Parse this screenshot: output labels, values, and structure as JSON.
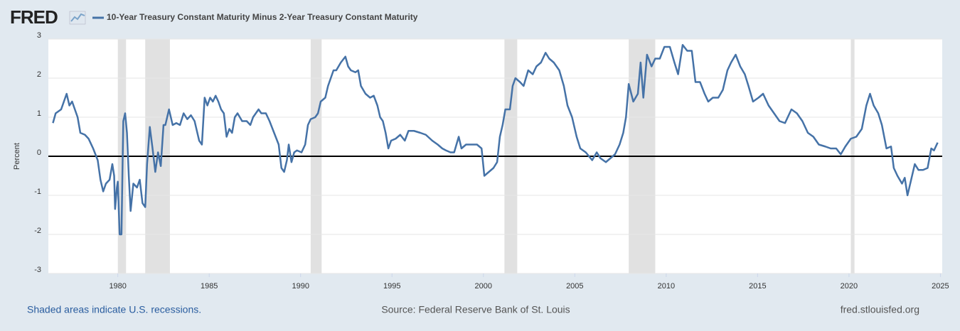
{
  "logo": "FRED",
  "chart_data": {
    "type": "line",
    "y_label": "Percent",
    "xlim": [
      1976.2,
      2025.1
    ],
    "xticks": [
      1980,
      1985,
      1990,
      1995,
      2000,
      2005,
      2010,
      2015,
      2020,
      2025
    ],
    "ylim": [
      -3,
      3
    ],
    "yticks": [
      -3,
      -2,
      -1,
      0,
      1,
      2,
      3
    ],
    "grid": true,
    "hline": 0,
    "recessions": [
      [
        1980.0,
        1980.45
      ],
      [
        1981.5,
        1982.85
      ],
      [
        1990.55,
        1991.15
      ],
      [
        2001.15,
        2001.85
      ],
      [
        2007.95,
        2009.4
      ],
      [
        2020.1,
        2020.3
      ]
    ],
    "x": [
      1976.45,
      1976.6,
      1976.9,
      1977.2,
      1977.35,
      1977.5,
      1977.65,
      1977.8,
      1977.95,
      1978.2,
      1978.4,
      1978.65,
      1978.9,
      1979.05,
      1979.2,
      1979.35,
      1979.55,
      1979.7,
      1979.8,
      1979.85,
      1979.95,
      1980.0,
      1980.1,
      1980.2,
      1980.25,
      1980.3,
      1980.4,
      1980.5,
      1980.6,
      1980.7,
      1980.85,
      1981.05,
      1981.2,
      1981.35,
      1981.5,
      1981.6,
      1981.75,
      1981.9,
      1982.05,
      1982.2,
      1982.35,
      1982.5,
      1982.6,
      1982.8,
      1983.0,
      1983.2,
      1983.4,
      1983.6,
      1983.8,
      1984.0,
      1984.2,
      1984.45,
      1984.6,
      1984.75,
      1984.9,
      1985.05,
      1985.2,
      1985.35,
      1985.5,
      1985.65,
      1985.8,
      1985.95,
      1986.1,
      1986.25,
      1986.4,
      1986.55,
      1986.8,
      1987.05,
      1987.25,
      1987.4,
      1987.55,
      1987.7,
      1987.85,
      1988.1,
      1988.3,
      1988.55,
      1988.8,
      1988.95,
      1989.1,
      1989.25,
      1989.35,
      1989.5,
      1989.65,
      1989.8,
      1990.05,
      1990.25,
      1990.4,
      1990.55,
      1990.8,
      1990.95,
      1991.1,
      1991.35,
      1991.5,
      1991.65,
      1991.8,
      1991.95,
      1992.2,
      1992.45,
      1992.6,
      1992.75,
      1993.0,
      1993.15,
      1993.3,
      1993.55,
      1993.8,
      1994.0,
      1994.2,
      1994.35,
      1994.5,
      1994.65,
      1994.8,
      1994.95,
      1995.2,
      1995.45,
      1995.7,
      1995.9,
      1996.2,
      1996.55,
      1996.85,
      1997.2,
      1997.5,
      1997.75,
      1997.95,
      1998.2,
      1998.4,
      1998.65,
      1998.8,
      1999.05,
      1999.35,
      1999.65,
      1999.9,
      2000.05,
      2000.3,
      2000.55,
      2000.75,
      2000.9,
      2001.05,
      2001.2,
      2001.45,
      2001.6,
      2001.75,
      2002.0,
      2002.2,
      2002.45,
      2002.7,
      2002.9,
      2003.15,
      2003.4,
      2003.6,
      2003.85,
      2004.15,
      2004.4,
      2004.6,
      2004.85,
      2005.1,
      2005.3,
      2005.6,
      2005.95,
      2006.2,
      2006.4,
      2006.7,
      2006.95,
      2007.2,
      2007.45,
      2007.65,
      2007.8,
      2007.95,
      2008.2,
      2008.45,
      2008.6,
      2008.75,
      2008.95,
      2009.2,
      2009.4,
      2009.65,
      2009.9,
      2010.2,
      2010.45,
      2010.65,
      2010.9,
      2011.15,
      2011.4,
      2011.6,
      2011.85,
      2012.1,
      2012.3,
      2012.55,
      2012.85,
      2013.1,
      2013.35,
      2013.55,
      2013.8,
      2014.05,
      2014.3,
      2014.5,
      2014.75,
      2015.05,
      2015.3,
      2015.6,
      2015.9,
      2016.2,
      2016.5,
      2016.85,
      2017.15,
      2017.45,
      2017.75,
      2018.05,
      2018.35,
      2018.7,
      2019.0,
      2019.3,
      2019.55,
      2019.8,
      2020.1,
      2020.4,
      2020.7,
      2020.95,
      2021.15,
      2021.35,
      2021.6,
      2021.8,
      2022.05,
      2022.3,
      2022.45,
      2022.65,
      2022.9,
      2023.05,
      2023.2,
      2023.35,
      2023.6,
      2023.8,
      2024.05,
      2024.3,
      2024.5,
      2024.65,
      2024.85
    ],
    "series": [
      {
        "name": "10-Year Treasury Constant Maturity Minus 2-Year Treasury Constant Maturity",
        "color": "#4572a7",
        "values": [
          0.85,
          1.1,
          1.2,
          1.6,
          1.3,
          1.4,
          1.2,
          1.0,
          0.6,
          0.55,
          0.45,
          0.2,
          -0.1,
          -0.6,
          -0.9,
          -0.7,
          -0.6,
          -0.2,
          -0.5,
          -1.35,
          -0.8,
          -0.65,
          -2.0,
          -2.0,
          -0.5,
          0.9,
          1.1,
          0.6,
          -0.5,
          -1.4,
          -0.7,
          -0.8,
          -0.6,
          -1.2,
          -1.3,
          -0.2,
          0.75,
          0.2,
          -0.4,
          0.1,
          -0.25,
          0.8,
          0.8,
          1.2,
          0.8,
          0.85,
          0.8,
          1.1,
          0.95,
          1.05,
          0.9,
          0.4,
          0.3,
          1.5,
          1.3,
          1.5,
          1.4,
          1.55,
          1.4,
          1.2,
          1.1,
          0.5,
          0.7,
          0.6,
          1.0,
          1.1,
          0.9,
          0.9,
          0.8,
          1.0,
          1.1,
          1.2,
          1.1,
          1.1,
          0.9,
          0.6,
          0.3,
          -0.3,
          -0.4,
          -0.1,
          0.3,
          -0.15,
          0.1,
          0.15,
          0.1,
          0.3,
          0.8,
          0.95,
          1.0,
          1.1,
          1.4,
          1.5,
          1.8,
          2.0,
          2.2,
          2.2,
          2.4,
          2.55,
          2.3,
          2.2,
          2.15,
          2.2,
          1.8,
          1.6,
          1.5,
          1.55,
          1.3,
          1.0,
          0.9,
          0.6,
          0.2,
          0.4,
          0.45,
          0.55,
          0.4,
          0.65,
          0.65,
          0.6,
          0.55,
          0.4,
          0.3,
          0.2,
          0.15,
          0.1,
          0.1,
          0.5,
          0.2,
          0.3,
          0.3,
          0.3,
          0.2,
          -0.5,
          -0.4,
          -0.3,
          -0.15,
          0.5,
          0.8,
          1.2,
          1.2,
          1.8,
          2.0,
          1.9,
          1.8,
          2.2,
          2.1,
          2.3,
          2.4,
          2.65,
          2.5,
          2.4,
          2.2,
          1.8,
          1.3,
          1.0,
          0.5,
          0.2,
          0.1,
          -0.1,
          0.1,
          -0.05,
          -0.15,
          -0.05,
          0.05,
          0.3,
          0.6,
          1.0,
          1.85,
          1.4,
          1.6,
          2.4,
          1.5,
          2.6,
          2.3,
          2.5,
          2.5,
          2.8,
          2.8,
          2.4,
          2.1,
          2.85,
          2.7,
          2.7,
          1.9,
          1.9,
          1.6,
          1.4,
          1.5,
          1.5,
          1.7,
          2.2,
          2.4,
          2.6,
          2.3,
          2.1,
          1.8,
          1.4,
          1.5,
          1.6,
          1.3,
          1.1,
          0.9,
          0.85,
          1.2,
          1.1,
          0.9,
          0.6,
          0.5,
          0.3,
          0.25,
          0.2,
          0.2,
          0.05,
          0.25,
          0.45,
          0.5,
          0.7,
          1.3,
          1.6,
          1.3,
          1.1,
          0.8,
          0.2,
          0.25,
          -0.3,
          -0.5,
          -0.7,
          -0.55,
          -1.0,
          -0.7,
          -0.2,
          -0.35,
          -0.35,
          -0.3,
          0.2,
          0.15,
          0.35
        ]
      }
    ],
    "notes": {
      "recessions": "Shaded areas indicate U.S. recessions.",
      "source": "Source: Federal Reserve Bank of St. Louis",
      "site": "fred.stlouisfed.org"
    }
  }
}
